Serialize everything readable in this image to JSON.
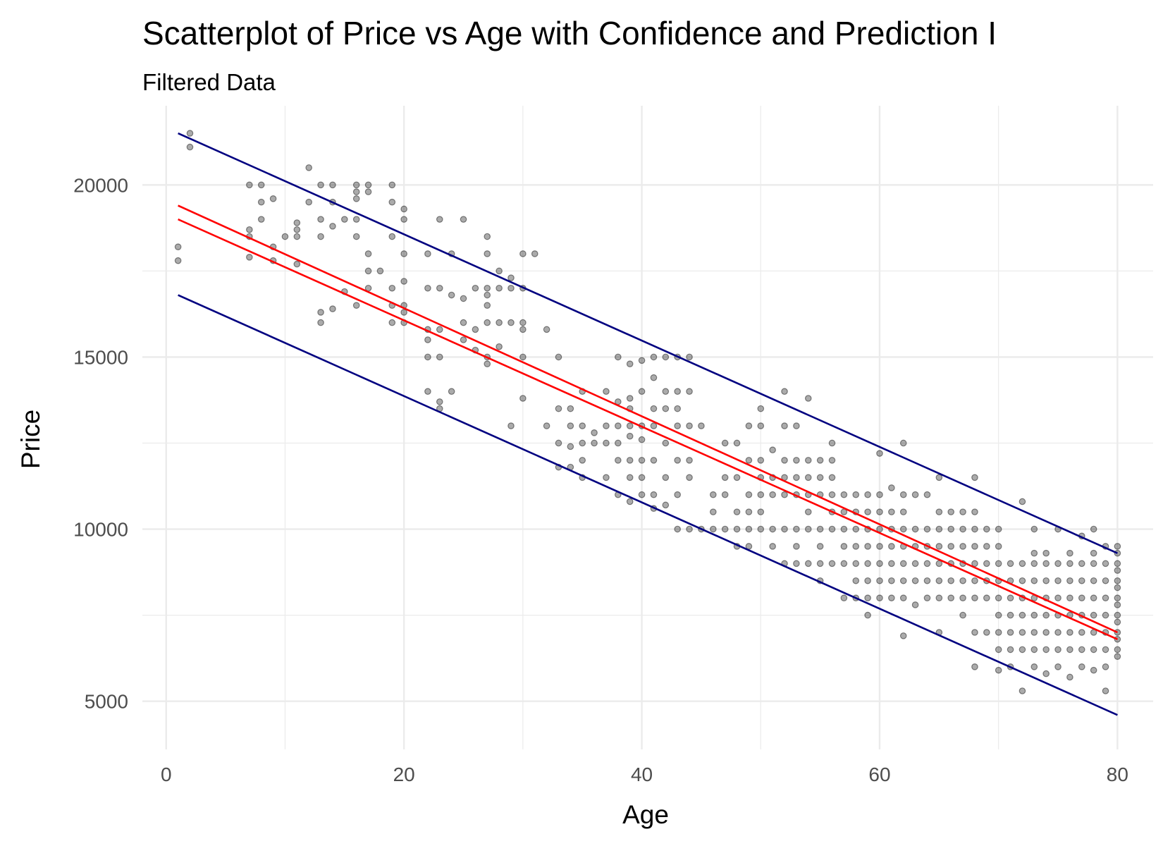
{
  "chart_data": {
    "type": "scatter",
    "title": "Scatterplot of Price vs Age with Confidence and Prediction I",
    "subtitle": "Filtered Data",
    "xlabel": "Age",
    "ylabel": "Price",
    "xlim": [
      -2,
      83
    ],
    "ylim": [
      3600,
      22300
    ],
    "x_ticks": [
      0,
      20,
      40,
      60,
      80
    ],
    "y_ticks": [
      5000,
      10000,
      15000,
      20000
    ],
    "grid": true,
    "legend": "none",
    "colors": {
      "points": "#000000",
      "confidence_band": "#ff0000",
      "prediction_band": "#000080",
      "grid": "#ebebeb"
    },
    "confidence_upper": [
      [
        1,
        19400
      ],
      [
        80,
        7000
      ]
    ],
    "confidence_lower": [
      [
        1,
        19000
      ],
      [
        80,
        6800
      ]
    ],
    "prediction_upper": [
      [
        1,
        21500
      ],
      [
        80,
        9300
      ]
    ],
    "prediction_lower": [
      [
        1,
        16800
      ],
      [
        80,
        4600
      ]
    ],
    "points": [
      [
        1,
        18200
      ],
      [
        1,
        17800
      ],
      [
        2,
        21500
      ],
      [
        2,
        21100
      ],
      [
        7,
        20000
      ],
      [
        7,
        18700
      ],
      [
        7,
        18500
      ],
      [
        7,
        17900
      ],
      [
        8,
        20000
      ],
      [
        8,
        19500
      ],
      [
        8,
        19000
      ],
      [
        9,
        19600
      ],
      [
        9,
        18200
      ],
      [
        9,
        17800
      ],
      [
        10,
        18500
      ],
      [
        11,
        18900
      ],
      [
        11,
        18700
      ],
      [
        11,
        18500
      ],
      [
        11,
        17700
      ],
      [
        12,
        20500
      ],
      [
        12,
        19500
      ],
      [
        13,
        20000
      ],
      [
        13,
        19000
      ],
      [
        13,
        18500
      ],
      [
        13,
        16000
      ],
      [
        13,
        16300
      ],
      [
        14,
        20000
      ],
      [
        14,
        19500
      ],
      [
        14,
        18800
      ],
      [
        14,
        16400
      ],
      [
        15,
        19000
      ],
      [
        15,
        16900
      ],
      [
        16,
        20000
      ],
      [
        16,
        19800
      ],
      [
        16,
        19600
      ],
      [
        16,
        19000
      ],
      [
        16,
        18500
      ],
      [
        16,
        16500
      ],
      [
        17,
        20000
      ],
      [
        17,
        19800
      ],
      [
        17,
        18000
      ],
      [
        17,
        17500
      ],
      [
        17,
        17000
      ],
      [
        18,
        17500
      ],
      [
        19,
        20000
      ],
      [
        19,
        19500
      ],
      [
        19,
        18500
      ],
      [
        19,
        17000
      ],
      [
        19,
        16500
      ],
      [
        19,
        16000
      ],
      [
        20,
        19300
      ],
      [
        20,
        19000
      ],
      [
        20,
        18000
      ],
      [
        20,
        17200
      ],
      [
        20,
        16500
      ],
      [
        20,
        16300
      ],
      [
        20,
        16000
      ],
      [
        22,
        18000
      ],
      [
        22,
        17000
      ],
      [
        22,
        15800
      ],
      [
        22,
        15500
      ],
      [
        22,
        15000
      ],
      [
        22,
        14000
      ],
      [
        23,
        19000
      ],
      [
        23,
        17000
      ],
      [
        23,
        15800
      ],
      [
        23,
        15000
      ],
      [
        23,
        13700
      ],
      [
        23,
        13500
      ],
      [
        24,
        18000
      ],
      [
        24,
        16800
      ],
      [
        24,
        14000
      ],
      [
        25,
        19000
      ],
      [
        25,
        16700
      ],
      [
        25,
        16000
      ],
      [
        25,
        15500
      ],
      [
        26,
        17000
      ],
      [
        26,
        15800
      ],
      [
        26,
        15200
      ],
      [
        27,
        18500
      ],
      [
        27,
        18000
      ],
      [
        27,
        17000
      ],
      [
        27,
        16800
      ],
      [
        27,
        16500
      ],
      [
        27,
        16000
      ],
      [
        27,
        15000
      ],
      [
        27,
        14800
      ],
      [
        28,
        17500
      ],
      [
        28,
        17000
      ],
      [
        28,
        16000
      ],
      [
        28,
        15300
      ],
      [
        29,
        17300
      ],
      [
        29,
        17000
      ],
      [
        29,
        16000
      ],
      [
        29,
        13000
      ],
      [
        30,
        18000
      ],
      [
        30,
        17000
      ],
      [
        30,
        16000
      ],
      [
        30,
        15800
      ],
      [
        30,
        15000
      ],
      [
        30,
        13800
      ],
      [
        31,
        18000
      ],
      [
        32,
        15800
      ],
      [
        32,
        13000
      ],
      [
        33,
        15000
      ],
      [
        33,
        13500
      ],
      [
        33,
        12500
      ],
      [
        33,
        11800
      ],
      [
        34,
        13500
      ],
      [
        34,
        13000
      ],
      [
        34,
        12400
      ],
      [
        34,
        11800
      ],
      [
        35,
        14000
      ],
      [
        35,
        13000
      ],
      [
        35,
        12500
      ],
      [
        35,
        12000
      ],
      [
        35,
        11500
      ],
      [
        36,
        12800
      ],
      [
        36,
        12500
      ],
      [
        37,
        14000
      ],
      [
        37,
        13000
      ],
      [
        37,
        12500
      ],
      [
        37,
        11500
      ],
      [
        38,
        15000
      ],
      [
        38,
        13700
      ],
      [
        38,
        13000
      ],
      [
        38,
        12500
      ],
      [
        38,
        12000
      ],
      [
        38,
        11000
      ],
      [
        39,
        14800
      ],
      [
        39,
        13800
      ],
      [
        39,
        13500
      ],
      [
        39,
        13000
      ],
      [
        39,
        12700
      ],
      [
        39,
        12000
      ],
      [
        39,
        11500
      ],
      [
        39,
        10800
      ],
      [
        40,
        14900
      ],
      [
        40,
        14000
      ],
      [
        40,
        13000
      ],
      [
        40,
        12600
      ],
      [
        40,
        12000
      ],
      [
        40,
        11500
      ],
      [
        40,
        11000
      ],
      [
        41,
        15000
      ],
      [
        41,
        14400
      ],
      [
        41,
        13500
      ],
      [
        41,
        13000
      ],
      [
        41,
        12000
      ],
      [
        41,
        11000
      ],
      [
        41,
        10600
      ],
      [
        42,
        15000
      ],
      [
        42,
        14000
      ],
      [
        42,
        13500
      ],
      [
        42,
        12500
      ],
      [
        42,
        11500
      ],
      [
        42,
        10700
      ],
      [
        43,
        15000
      ],
      [
        43,
        14000
      ],
      [
        43,
        13500
      ],
      [
        43,
        13000
      ],
      [
        43,
        12000
      ],
      [
        43,
        11000
      ],
      [
        43,
        10000
      ],
      [
        44,
        15000
      ],
      [
        44,
        14000
      ],
      [
        44,
        13000
      ],
      [
        44,
        12000
      ],
      [
        44,
        11500
      ],
      [
        44,
        10000
      ],
      [
        45,
        13000
      ],
      [
        45,
        10000
      ],
      [
        46,
        11000
      ],
      [
        46,
        10500
      ],
      [
        46,
        10000
      ],
      [
        47,
        12500
      ],
      [
        47,
        11500
      ],
      [
        47,
        11000
      ],
      [
        47,
        10000
      ],
      [
        48,
        12500
      ],
      [
        48,
        11500
      ],
      [
        48,
        10500
      ],
      [
        48,
        10000
      ],
      [
        48,
        9500
      ],
      [
        49,
        13000
      ],
      [
        49,
        12000
      ],
      [
        49,
        11000
      ],
      [
        49,
        10500
      ],
      [
        49,
        10000
      ],
      [
        49,
        9500
      ],
      [
        50,
        13500
      ],
      [
        50,
        13000
      ],
      [
        50,
        12000
      ],
      [
        50,
        11500
      ],
      [
        50,
        11000
      ],
      [
        50,
        10500
      ],
      [
        50,
        10000
      ],
      [
        51,
        12300
      ],
      [
        51,
        11500
      ],
      [
        51,
        11000
      ],
      [
        51,
        10000
      ],
      [
        51,
        9500
      ],
      [
        52,
        14000
      ],
      [
        52,
        13000
      ],
      [
        52,
        12000
      ],
      [
        52,
        11500
      ],
      [
        52,
        11000
      ],
      [
        52,
        10000
      ],
      [
        52,
        9000
      ],
      [
        53,
        13000
      ],
      [
        53,
        12000
      ],
      [
        53,
        11500
      ],
      [
        53,
        11000
      ],
      [
        53,
        10000
      ],
      [
        53,
        9500
      ],
      [
        53,
        9000
      ],
      [
        54,
        13800
      ],
      [
        54,
        12000
      ],
      [
        54,
        11500
      ],
      [
        54,
        11000
      ],
      [
        54,
        10500
      ],
      [
        54,
        10000
      ],
      [
        54,
        9000
      ],
      [
        55,
        12000
      ],
      [
        55,
        11500
      ],
      [
        55,
        11000
      ],
      [
        55,
        10000
      ],
      [
        55,
        9500
      ],
      [
        55,
        9000
      ],
      [
        55,
        8500
      ],
      [
        56,
        12500
      ],
      [
        56,
        12000
      ],
      [
        56,
        11500
      ],
      [
        56,
        11000
      ],
      [
        56,
        10500
      ],
      [
        56,
        10000
      ],
      [
        56,
        9000
      ],
      [
        57,
        11000
      ],
      [
        57,
        10500
      ],
      [
        57,
        10000
      ],
      [
        57,
        9500
      ],
      [
        57,
        9000
      ],
      [
        57,
        8000
      ],
      [
        58,
        11000
      ],
      [
        58,
        10500
      ],
      [
        58,
        10000
      ],
      [
        58,
        9500
      ],
      [
        58,
        9000
      ],
      [
        58,
        8500
      ],
      [
        58,
        8000
      ],
      [
        59,
        11000
      ],
      [
        59,
        10500
      ],
      [
        59,
        10000
      ],
      [
        59,
        9500
      ],
      [
        59,
        9000
      ],
      [
        59,
        8500
      ],
      [
        59,
        8000
      ],
      [
        59,
        7500
      ],
      [
        60,
        12200
      ],
      [
        60,
        11000
      ],
      [
        60,
        10500
      ],
      [
        60,
        10000
      ],
      [
        60,
        9500
      ],
      [
        60,
        9000
      ],
      [
        60,
        8500
      ],
      [
        60,
        8000
      ],
      [
        61,
        11200
      ],
      [
        61,
        10500
      ],
      [
        61,
        10000
      ],
      [
        61,
        9500
      ],
      [
        61,
        9000
      ],
      [
        61,
        8500
      ],
      [
        61,
        8000
      ],
      [
        62,
        12500
      ],
      [
        62,
        11000
      ],
      [
        62,
        10500
      ],
      [
        62,
        10000
      ],
      [
        62,
        9500
      ],
      [
        62,
        9000
      ],
      [
        62,
        8500
      ],
      [
        62,
        8000
      ],
      [
        62,
        6900
      ],
      [
        63,
        11000
      ],
      [
        63,
        10000
      ],
      [
        63,
        9500
      ],
      [
        63,
        9000
      ],
      [
        63,
        8500
      ],
      [
        63,
        7800
      ],
      [
        64,
        11000
      ],
      [
        64,
        10000
      ],
      [
        64,
        9500
      ],
      [
        64,
        9000
      ],
      [
        64,
        8500
      ],
      [
        64,
        8000
      ],
      [
        65,
        11500
      ],
      [
        65,
        10500
      ],
      [
        65,
        10000
      ],
      [
        65,
        9500
      ],
      [
        65,
        9000
      ],
      [
        65,
        8500
      ],
      [
        65,
        8000
      ],
      [
        65,
        7000
      ],
      [
        66,
        10500
      ],
      [
        66,
        10000
      ],
      [
        66,
        9500
      ],
      [
        66,
        9000
      ],
      [
        66,
        8500
      ],
      [
        66,
        8000
      ],
      [
        67,
        10500
      ],
      [
        67,
        10000
      ],
      [
        67,
        9500
      ],
      [
        67,
        9000
      ],
      [
        67,
        8500
      ],
      [
        67,
        8000
      ],
      [
        67,
        7500
      ],
      [
        68,
        11500
      ],
      [
        68,
        10500
      ],
      [
        68,
        10000
      ],
      [
        68,
        9500
      ],
      [
        68,
        9000
      ],
      [
        68,
        8500
      ],
      [
        68,
        8000
      ],
      [
        68,
        7000
      ],
      [
        68,
        6000
      ],
      [
        69,
        10000
      ],
      [
        69,
        9500
      ],
      [
        69,
        9000
      ],
      [
        69,
        8500
      ],
      [
        69,
        8000
      ],
      [
        69,
        7000
      ],
      [
        70,
        10000
      ],
      [
        70,
        9500
      ],
      [
        70,
        9000
      ],
      [
        70,
        8500
      ],
      [
        70,
        8000
      ],
      [
        70,
        7500
      ],
      [
        70,
        7000
      ],
      [
        70,
        6500
      ],
      [
        70,
        5900
      ],
      [
        71,
        9000
      ],
      [
        71,
        8500
      ],
      [
        71,
        8000
      ],
      [
        71,
        7500
      ],
      [
        71,
        7000
      ],
      [
        71,
        6500
      ],
      [
        71,
        6000
      ],
      [
        72,
        10800
      ],
      [
        72,
        9000
      ],
      [
        72,
        8500
      ],
      [
        72,
        8000
      ],
      [
        72,
        7500
      ],
      [
        72,
        7000
      ],
      [
        72,
        6500
      ],
      [
        72,
        5300
      ],
      [
        73,
        10000
      ],
      [
        73,
        9300
      ],
      [
        73,
        9000
      ],
      [
        73,
        8500
      ],
      [
        73,
        8000
      ],
      [
        73,
        7500
      ],
      [
        73,
        7000
      ],
      [
        73,
        6500
      ],
      [
        73,
        6000
      ],
      [
        74,
        9300
      ],
      [
        74,
        9000
      ],
      [
        74,
        8500
      ],
      [
        74,
        8000
      ],
      [
        74,
        7500
      ],
      [
        74,
        7000
      ],
      [
        74,
        6500
      ],
      [
        74,
        5800
      ],
      [
        75,
        10000
      ],
      [
        75,
        9000
      ],
      [
        75,
        8500
      ],
      [
        75,
        8000
      ],
      [
        75,
        7500
      ],
      [
        75,
        7000
      ],
      [
        75,
        6500
      ],
      [
        75,
        6000
      ],
      [
        76,
        9300
      ],
      [
        76,
        9000
      ],
      [
        76,
        8500
      ],
      [
        76,
        8000
      ],
      [
        76,
        7500
      ],
      [
        76,
        7000
      ],
      [
        76,
        6500
      ],
      [
        76,
        5700
      ],
      [
        77,
        9800
      ],
      [
        77,
        9000
      ],
      [
        77,
        8500
      ],
      [
        77,
        8000
      ],
      [
        77,
        7500
      ],
      [
        77,
        7000
      ],
      [
        77,
        6500
      ],
      [
        77,
        6000
      ],
      [
        78,
        10000
      ],
      [
        78,
        9300
      ],
      [
        78,
        9000
      ],
      [
        78,
        8500
      ],
      [
        78,
        8000
      ],
      [
        78,
        7500
      ],
      [
        78,
        7000
      ],
      [
        78,
        6500
      ],
      [
        78,
        5900
      ],
      [
        79,
        9500
      ],
      [
        79,
        9000
      ],
      [
        79,
        8500
      ],
      [
        79,
        8000
      ],
      [
        79,
        7500
      ],
      [
        79,
        7000
      ],
      [
        79,
        6500
      ],
      [
        79,
        6000
      ],
      [
        79,
        5300
      ],
      [
        80,
        9500
      ],
      [
        80,
        9300
      ],
      [
        80,
        9000
      ],
      [
        80,
        8800
      ],
      [
        80,
        8500
      ],
      [
        80,
        8300
      ],
      [
        80,
        8000
      ],
      [
        80,
        7800
      ],
      [
        80,
        7500
      ],
      [
        80,
        7300
      ],
      [
        80,
        7000
      ],
      [
        80,
        6800
      ],
      [
        80,
        6500
      ],
      [
        80,
        6300
      ]
    ]
  }
}
